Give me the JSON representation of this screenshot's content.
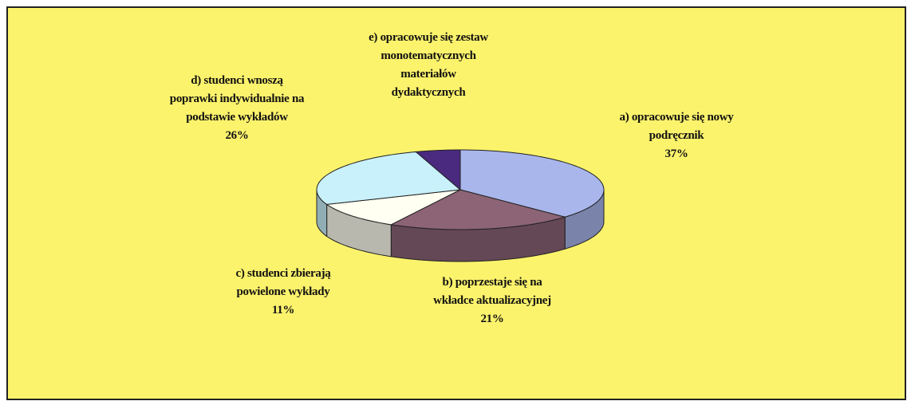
{
  "chart_data": {
    "type": "pie3d",
    "categories": [
      "a) opracowuje się nowy\npodręcznik",
      "b) poprzestaje się na\nwkładce aktualizacyjnej",
      "c) studenci zbierają\npowielone wykłady",
      "d) studenci wnoszą\npoprawki indywidualnie na\npodstawie wykładów",
      "e) opracowuje się zestaw\nmonotematycznych\nmateriałów\ndydaktycznych"
    ],
    "values": [
      37,
      21,
      11,
      26,
      5
    ],
    "value_labels": [
      "37%",
      "21%",
      "11%",
      "26%",
      null
    ],
    "colors": [
      "#a9b6ec",
      "#8c6476",
      "#fffff2",
      "#c9f1fb",
      "#4a2a7e"
    ]
  }
}
